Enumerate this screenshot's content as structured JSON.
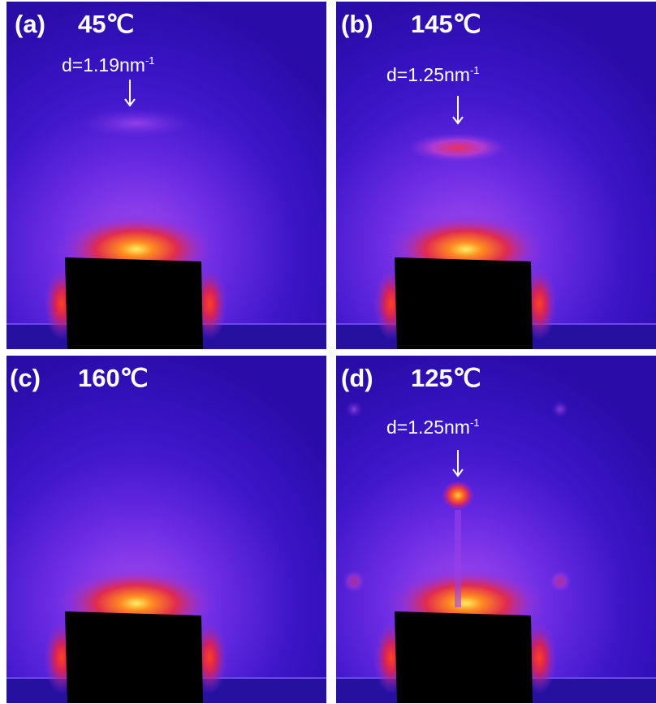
{
  "panels": [
    {
      "label": "(a)",
      "temperature": "45℃",
      "annotation": {
        "text": "d=1.19nm",
        "superscript": "-1"
      }
    },
    {
      "label": "(b)",
      "temperature": "145℃",
      "annotation": {
        "text": "d=1.25nm",
        "superscript": "-1"
      }
    },
    {
      "label": "(c)",
      "temperature": "160℃"
    },
    {
      "label": "(d)",
      "temperature": "125℃",
      "annotation": {
        "text": "d=1.25nm",
        "superscript": "-1"
      }
    }
  ]
}
